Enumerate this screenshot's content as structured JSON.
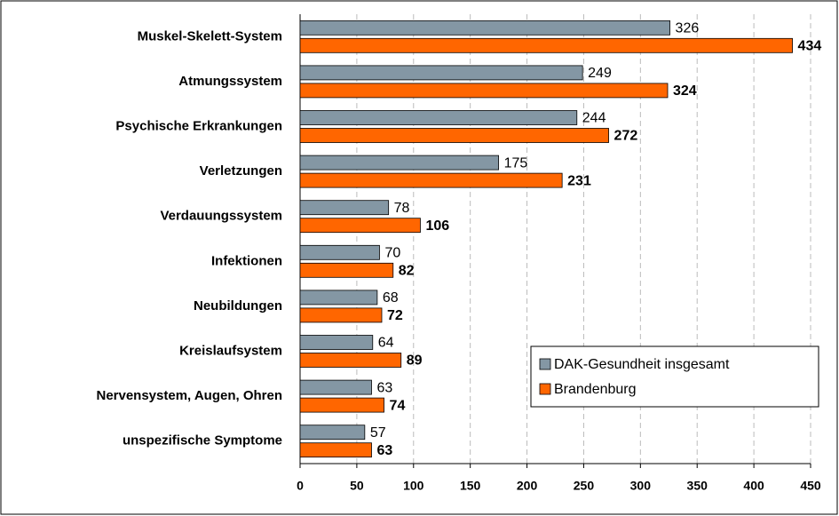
{
  "chart_data": {
    "type": "barh",
    "categories": [
      "Muskel-Skelett-System",
      "Atmungssystem",
      "Psychische Erkrankungen",
      "Verletzungen",
      "Verdauungssystem",
      "Infektionen",
      "Neubildungen",
      "Kreislaufsystem",
      "Nervensystem, Augen, Ohren",
      "unspezifische Symptome"
    ],
    "series": [
      {
        "name": "DAK-Gesundheit insgesamt",
        "color": "#8497a4",
        "values": [
          326,
          249,
          244,
          175,
          78,
          70,
          68,
          64,
          63,
          57
        ]
      },
      {
        "name": "Brandenburg",
        "color": "#ff6600",
        "values": [
          434,
          324,
          272,
          231,
          106,
          82,
          72,
          89,
          74,
          63
        ]
      }
    ],
    "xlim": [
      0,
      450
    ],
    "xticks": [
      0,
      50,
      100,
      150,
      200,
      250,
      300,
      350,
      400,
      450
    ],
    "grid": true,
    "legend": "lower right"
  }
}
